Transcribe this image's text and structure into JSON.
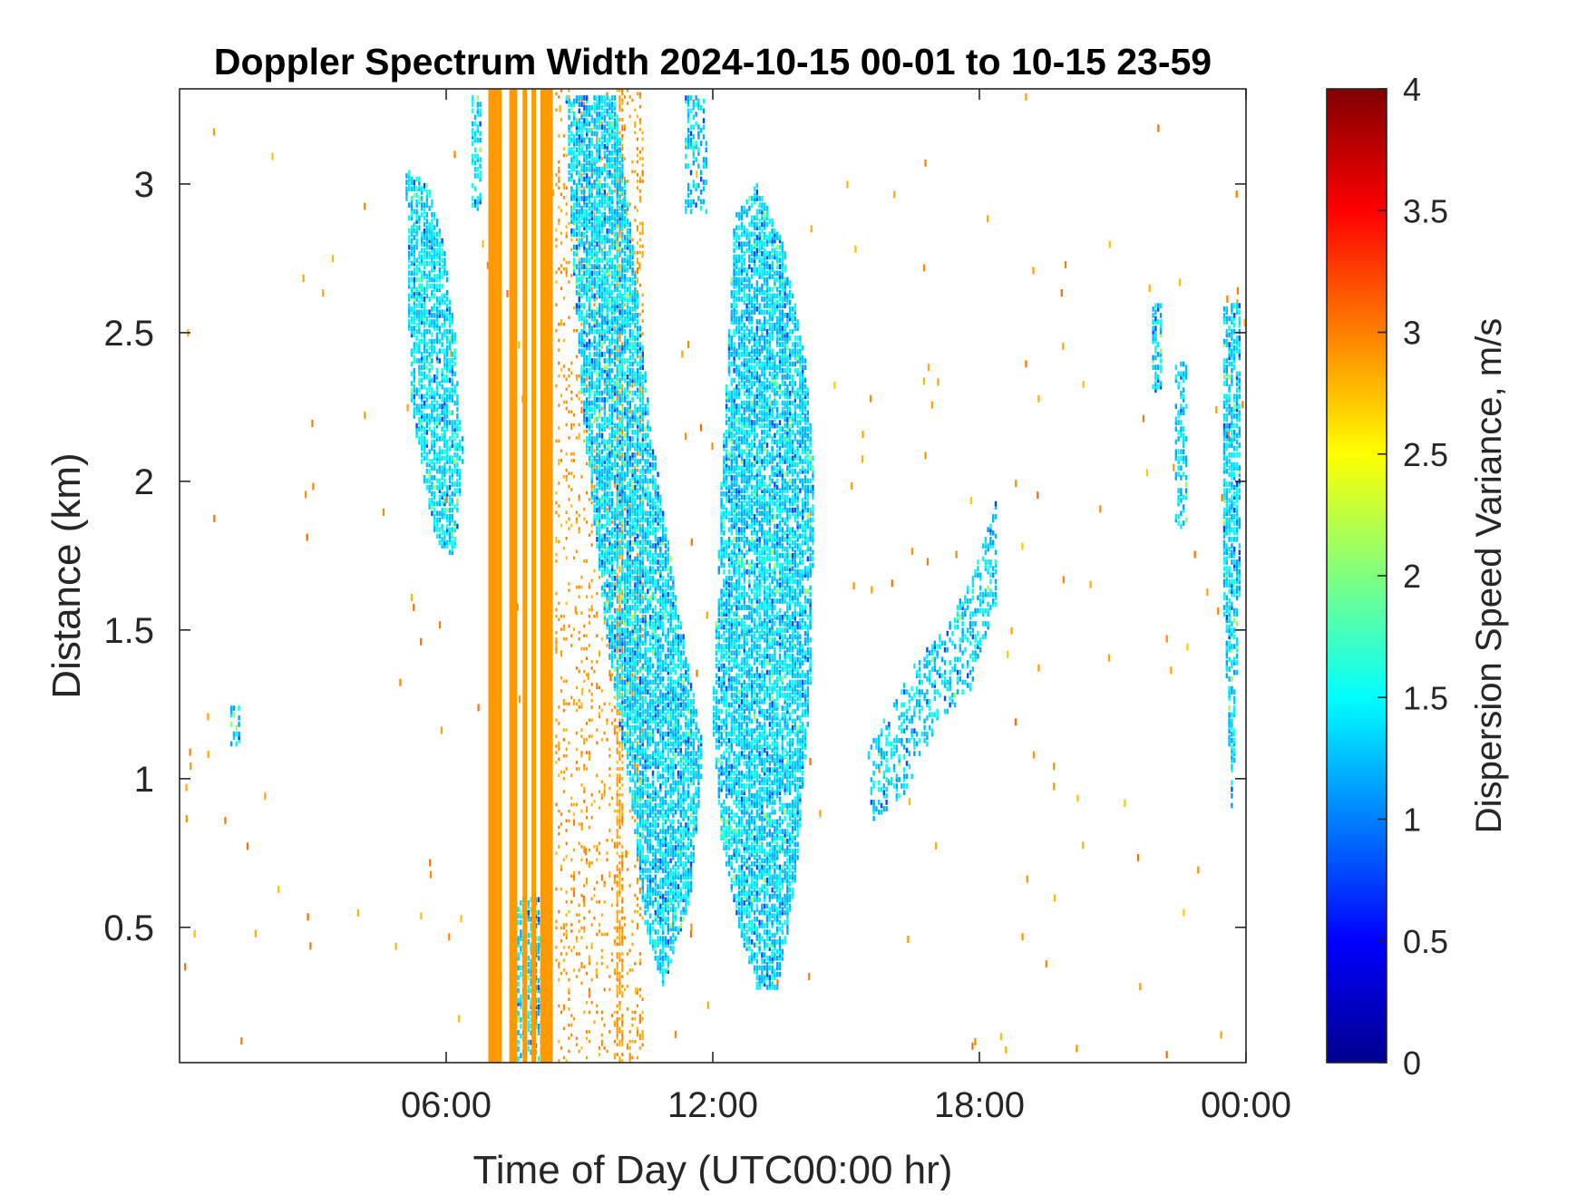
{
  "chart_data": {
    "type": "heatmap",
    "title": "Doppler Spectrum Width 2024-10-15 00-01 to 10-15 23-59",
    "xlabel": "Time of Day (UTC00:00 hr)",
    "ylabel": "Distance (km)",
    "colorbar_label": "Dispersion Speed Variance, m/s",
    "xlim": [
      0,
      24
    ],
    "ylim": [
      0.045,
      3.32
    ],
    "clim": [
      0,
      4
    ],
    "colormap": "jet",
    "grid": false,
    "x_ticks": [
      6,
      12,
      18,
      24
    ],
    "x_tick_labels": [
      "06:00",
      "12:00",
      "18:00",
      "00:00"
    ],
    "y_ticks": [
      0.5,
      1,
      1.5,
      2,
      2.5,
      3
    ],
    "y_tick_labels": [
      "0.5",
      "1",
      "1.5",
      "2",
      "2.5",
      "3"
    ],
    "colorbar_ticks": [
      0,
      0.5,
      1,
      1.5,
      2,
      2.5,
      3,
      3.5,
      4
    ],
    "colorbar_tick_labels": [
      "0",
      "0.5",
      "1",
      "1.5",
      "2",
      "2.5",
      "3",
      "3.5",
      "4"
    ],
    "solid_bands": [
      {
        "x0": 6.95,
        "x1": 7.25,
        "value": 2.9
      },
      {
        "x0": 7.42,
        "x1": 7.6,
        "value": 2.9
      },
      {
        "x0": 7.72,
        "x1": 7.82,
        "value": 2.9
      },
      {
        "x0": 7.92,
        "x1": 8.02,
        "value": 2.9
      },
      {
        "x0": 8.12,
        "x1": 8.4,
        "value": 2.9
      }
    ],
    "echo_regions": [
      {
        "x": [
          5.1,
          5.6,
          5.95,
          6.2,
          6.4,
          6.2,
          5.8,
          5.5,
          5.2,
          5.1
        ],
        "y": [
          3.05,
          3.0,
          2.8,
          2.5,
          2.1,
          1.75,
          1.8,
          2.0,
          2.3,
          3.05
        ],
        "value": 1.4,
        "density": 0.55
      },
      {
        "x": [
          8.7,
          9.8,
          10.2,
          10.6,
          11.2,
          11.8,
          11.5,
          10.9,
          10.5,
          10.2,
          9.6,
          9.1,
          8.8,
          8.7
        ],
        "y": [
          3.3,
          3.3,
          2.8,
          2.2,
          1.6,
          1.1,
          0.6,
          0.3,
          0.5,
          0.9,
          1.5,
          2.2,
          2.9,
          3.3
        ],
        "value": 1.35,
        "density": 0.6
      },
      {
        "x": [
          12.5,
          13.0,
          13.6,
          14.1,
          14.3,
          14.2,
          13.9,
          13.5,
          13.0,
          12.6,
          12.2,
          12.0,
          12.2,
          12.5
        ],
        "y": [
          2.9,
          3.0,
          2.8,
          2.4,
          2.0,
          1.3,
          0.7,
          0.3,
          0.3,
          0.5,
          0.8,
          1.2,
          2.0,
          2.9
        ],
        "value": 1.35,
        "density": 0.6
      },
      {
        "x": [
          7.4,
          8.4,
          8.4,
          7.4
        ],
        "y": [
          0.6,
          0.6,
          0.06,
          0.06
        ],
        "value": 1.35,
        "density": 0.45
      },
      {
        "x": [
          15.5,
          16.6,
          17.2,
          17.9,
          18.4,
          18.4,
          17.8,
          17.1,
          16.3,
          15.6
        ],
        "y": [
          1.1,
          1.4,
          1.5,
          1.7,
          1.95,
          1.6,
          1.3,
          1.2,
          0.95,
          0.85
        ],
        "value": 1.35,
        "density": 0.3
      },
      {
        "x": [
          23.5,
          23.9,
          23.9,
          23.7,
          23.5
        ],
        "y": [
          2.6,
          2.6,
          1.8,
          0.85,
          1.6
        ],
        "value": 1.35,
        "density": 0.55
      },
      {
        "x": [
          21.9,
          22.1,
          22.1,
          21.9
        ],
        "y": [
          2.6,
          2.6,
          2.3,
          2.3
        ],
        "value": 1.35,
        "density": 0.5
      },
      {
        "x": [
          22.4,
          22.7,
          22.7,
          22.4
        ],
        "y": [
          2.4,
          2.4,
          1.85,
          1.85
        ],
        "value": 1.35,
        "density": 0.35
      },
      {
        "x": [
          1.15,
          1.4,
          1.4,
          1.15
        ],
        "y": [
          1.25,
          1.25,
          1.12,
          1.12
        ],
        "value": 1.35,
        "density": 0.4
      },
      {
        "x": [
          6.6,
          6.8,
          6.8,
          6.6
        ],
        "y": [
          3.3,
          3.3,
          2.9,
          2.9
        ],
        "value": 1.4,
        "density": 0.35
      },
      {
        "x": [
          11.4,
          11.9,
          11.9,
          11.4
        ],
        "y": [
          3.3,
          3.3,
          2.9,
          2.9
        ],
        "value": 1.35,
        "density": 0.3
      }
    ],
    "orange_scatter_columns": [
      {
        "x0": 8.5,
        "x1": 10.3,
        "value": 2.9,
        "density": 0.12
      },
      {
        "x0": 9.85,
        "x1": 9.95,
        "value": 2.9,
        "density": 0.55
      },
      {
        "x0": 10.3,
        "x1": 10.45,
        "value": 2.9,
        "density": 0.25
      }
    ],
    "background_noise": {
      "value": 2.9,
      "count": 200
    }
  }
}
